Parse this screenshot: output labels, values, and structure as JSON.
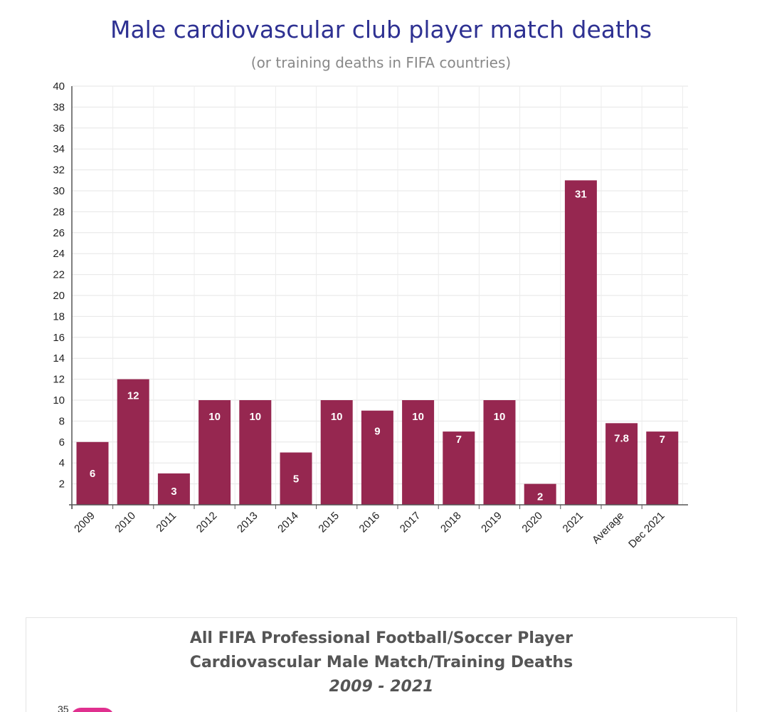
{
  "chart_data": {
    "type": "bar",
    "title": "Male cardiovascular club player match deaths",
    "subtitle": "(or training deaths in FIFA countries)",
    "categories": [
      "2009",
      "2010",
      "2011",
      "2012",
      "2013",
      "2014",
      "2015",
      "2016",
      "2017",
      "2018",
      "2019",
      "2020",
      "2021",
      "Average",
      "Dec 2021"
    ],
    "values": [
      6,
      12,
      3,
      10,
      10,
      5,
      10,
      9,
      10,
      7,
      10,
      2,
      31,
      7.8,
      7
    ],
    "data_labels": [
      "6",
      "12",
      "3",
      "10",
      "10",
      "5",
      "10",
      "9",
      "10",
      "7",
      "10",
      "2",
      "31",
      "7.8",
      "7"
    ],
    "ylim": [
      0,
      40
    ],
    "yticks": [
      "2",
      "4",
      "6",
      "8",
      "10",
      "12",
      "14",
      "16",
      "18",
      "20",
      "22",
      "24",
      "26",
      "28",
      "30",
      "32",
      "34",
      "36",
      "38",
      "40"
    ],
    "grid": true,
    "bar_color": "#962750",
    "xlabel": "",
    "ylabel": ""
  },
  "second_chart": {
    "title_line1": "All FIFA Professional Football/Soccer Player",
    "title_line2": "Cardiovascular Male Match/Training Deaths",
    "title_line3": "2009 - 2021",
    "partial_ytick": "35"
  }
}
